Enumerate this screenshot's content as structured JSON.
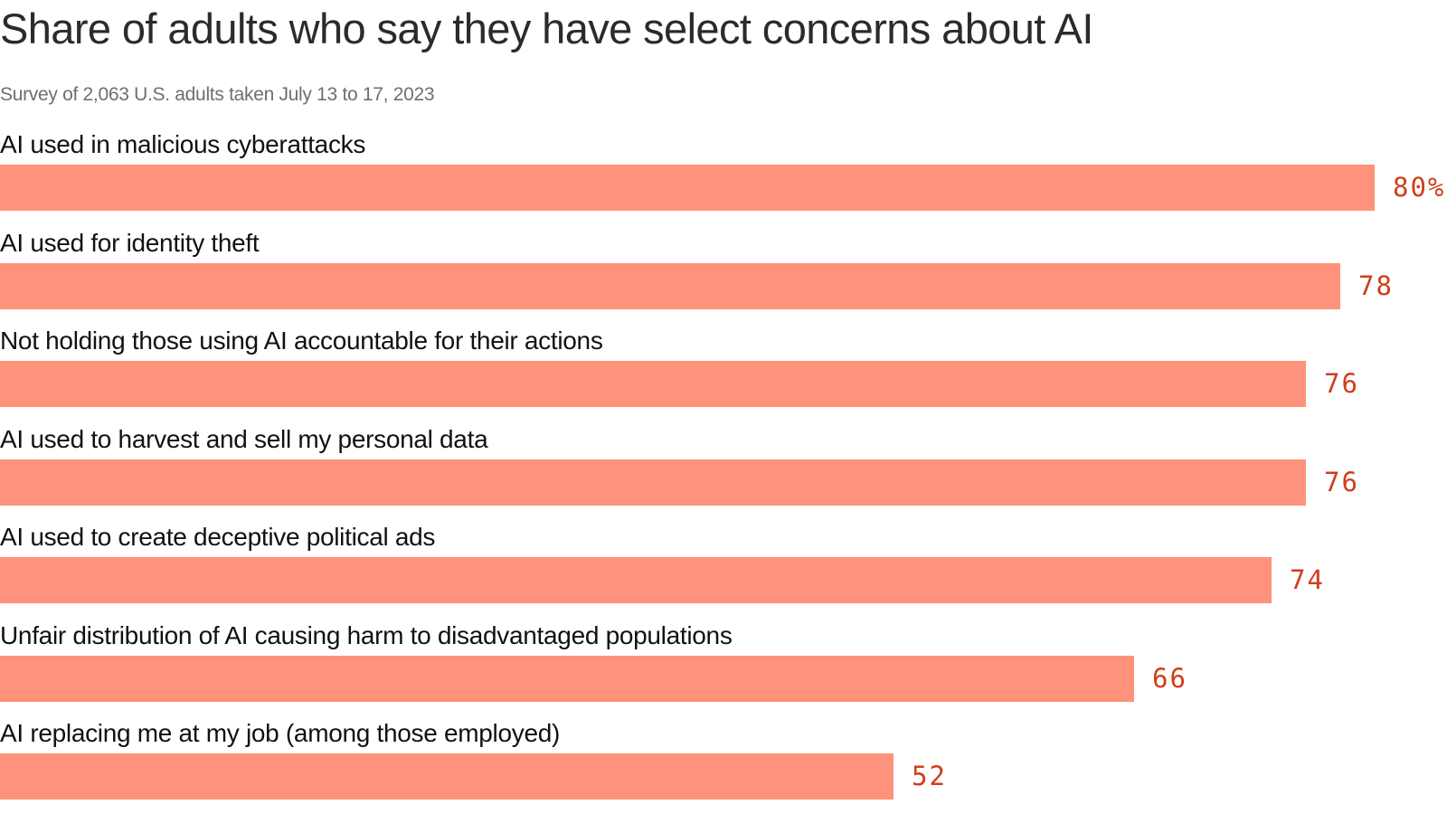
{
  "header": {
    "title": "Share of adults who say they have select concerns about AI",
    "subtitle": "Survey of 2,063 U.S. adults taken July 13 to 17, 2023"
  },
  "colors": {
    "bar": "#ff927a",
    "value_text": "#cf3e1c"
  },
  "chart_data": {
    "type": "bar",
    "orientation": "horizontal",
    "title": "Share of adults who say they have select concerns about AI",
    "subtitle": "Survey of 2,063 U.S. adults taken July 13 to 17, 2023",
    "xlim": [
      0,
      80
    ],
    "grid": false,
    "value_suffix_first": "%",
    "categories": [
      "AI used in malicious cyberattacks",
      "AI used for identity theft",
      "Not holding those using AI accountable for their actions",
      "AI used to harvest and sell my personal data",
      "AI used to create deceptive political ads",
      "Unfair distribution of AI causing harm to disadvantaged populations",
      "AI replacing me at my job (among those employed)"
    ],
    "values": [
      80,
      78,
      76,
      76,
      74,
      66,
      52
    ],
    "value_labels": [
      "80%",
      "78",
      "76",
      "76",
      "74",
      "66",
      "52"
    ]
  }
}
